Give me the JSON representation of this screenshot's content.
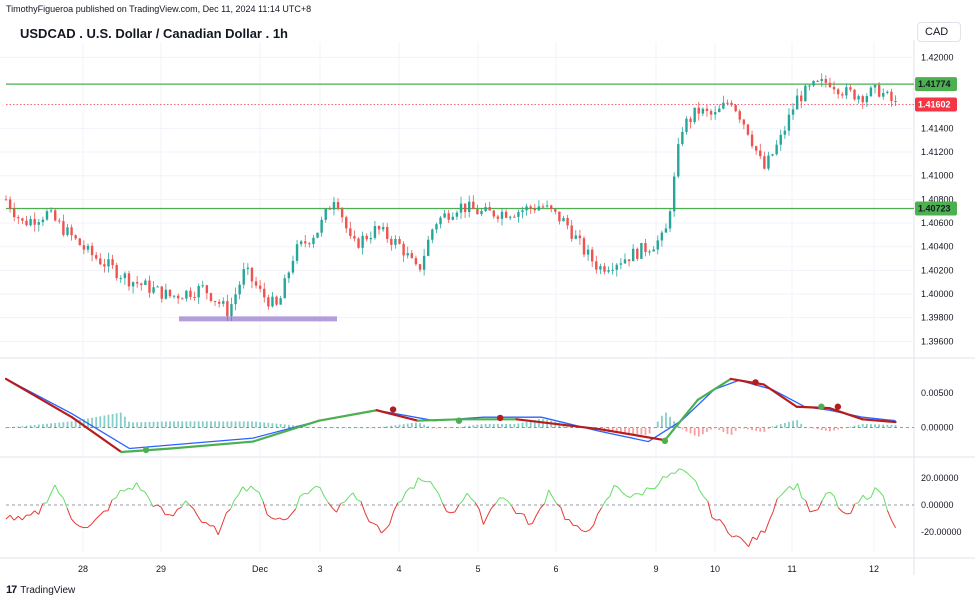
{
  "header": {
    "publish_line": "TimothyFigueroa published on TradingView.com, Dec 11, 2024 11:14 UTC+8"
  },
  "chart": {
    "title": "USDCAD . U.S. Dollar / Canadian Dollar . 1h",
    "currency_button": "CAD",
    "price_axis_labels": [
      "1.42000",
      "1.41400",
      "1.41200",
      "1.41000",
      "1.40800",
      "1.40600",
      "1.40400",
      "1.40200",
      "1.40000",
      "1.39800",
      "1.39600"
    ],
    "level_tags": [
      {
        "label": "1.41774",
        "value": 1.41774,
        "bg": "#4caf50",
        "fg": "#131722"
      },
      {
        "label": "1.40723",
        "value": 1.40723,
        "bg": "#4caf50",
        "fg": "#131722"
      },
      {
        "label": "1.41602",
        "value": 1.41602,
        "bg": "#f23645",
        "fg": "#ffffff"
      }
    ],
    "macd_axis_labels": [
      "0.00500",
      "0.00000"
    ],
    "osc_axis_labels": [
      "20.00000",
      "0.00000",
      "-20.00000"
    ],
    "time_labels": [
      "28",
      "29",
      "Dec",
      "3",
      "4",
      "5",
      "6",
      "9",
      "10",
      "11",
      "12"
    ],
    "colors": {
      "up": "#26a69a",
      "down": "#ef5350",
      "support_line": "#4caf50",
      "current_line": "#f23645",
      "zone": "#b39ddb",
      "macd_line": "#2962ff",
      "signal_up": "#4caf50",
      "signal_down": "#b71c1c",
      "hist_up": "#26a69a",
      "hist_down": "#ef5350",
      "osc_up": "#66dd66",
      "osc_down": "#e53935"
    }
  },
  "chart_data": {
    "type": "candlestick",
    "title": "USDCAD . U.S. Dollar / Canadian Dollar . 1h",
    "ylim": [
      1.3951,
      1.4213
    ],
    "support_levels": [
      1.41774,
      1.40723
    ],
    "current_price": 1.41602,
    "demand_zone": {
      "from_label": "29",
      "to_label": "3",
      "price": 1.3979
    },
    "close_path": [
      {
        "x": 0,
        "y": 1.408
      },
      {
        "x": 2,
        "y": 1.406
      },
      {
        "x": 5,
        "y": 1.4068
      },
      {
        "x": 10,
        "y": 1.4035
      },
      {
        "x": 15,
        "y": 1.4012
      },
      {
        "x": 20,
        "y": 1.3998
      },
      {
        "x": 24,
        "y": 1.4005
      },
      {
        "x": 27,
        "y": 1.3985
      },
      {
        "x": 29,
        "y": 1.402
      },
      {
        "x": 31,
        "y": 1.4
      },
      {
        "x": 33,
        "y": 1.3988
      },
      {
        "x": 35,
        "y": 1.4035
      },
      {
        "x": 38,
        "y": 1.4055
      },
      {
        "x": 40,
        "y": 1.4085
      },
      {
        "x": 42,
        "y": 1.404
      },
      {
        "x": 45,
        "y": 1.4055
      },
      {
        "x": 48,
        "y": 1.404
      },
      {
        "x": 50,
        "y": 1.4018
      },
      {
        "x": 52,
        "y": 1.406
      },
      {
        "x": 55,
        "y": 1.4075
      },
      {
        "x": 58,
        "y": 1.4068
      },
      {
        "x": 62,
        "y": 1.407
      },
      {
        "x": 65,
        "y": 1.4075
      },
      {
        "x": 68,
        "y": 1.406
      },
      {
        "x": 70,
        "y": 1.4038
      },
      {
        "x": 72,
        "y": 1.4022
      },
      {
        "x": 75,
        "y": 1.403
      },
      {
        "x": 78,
        "y": 1.404
      },
      {
        "x": 80,
        "y": 1.4048
      },
      {
        "x": 81,
        "y": 1.409
      },
      {
        "x": 82,
        "y": 1.414
      },
      {
        "x": 84,
        "y": 1.4155
      },
      {
        "x": 86,
        "y": 1.415
      },
      {
        "x": 88,
        "y": 1.4165
      },
      {
        "x": 90,
        "y": 1.414
      },
      {
        "x": 92,
        "y": 1.4105
      },
      {
        "x": 94,
        "y": 1.413
      },
      {
        "x": 96,
        "y": 1.4165
      },
      {
        "x": 98,
        "y": 1.4175
      },
      {
        "x": 100,
        "y": 1.418
      },
      {
        "x": 102,
        "y": 1.417
      },
      {
        "x": 104,
        "y": 1.4168
      },
      {
        "x": 106,
        "y": 1.4172
      },
      {
        "x": 108,
        "y": 1.416
      }
    ],
    "macd": {
      "ylim": [
        -0.0035,
        0.009
      ],
      "macd_line": [
        {
          "x": 0,
          "y": 0.007
        },
        {
          "x": 8,
          "y": 0.002
        },
        {
          "x": 15,
          "y": -0.003
        },
        {
          "x": 20,
          "y": -0.0025
        },
        {
          "x": 30,
          "y": -0.0015
        },
        {
          "x": 38,
          "y": 0.001
        },
        {
          "x": 45,
          "y": 0.0025
        },
        {
          "x": 52,
          "y": 0.001
        },
        {
          "x": 58,
          "y": 0.0015
        },
        {
          "x": 65,
          "y": 0.0015
        },
        {
          "x": 72,
          "y": -0.0005
        },
        {
          "x": 78,
          "y": -0.002
        },
        {
          "x": 82,
          "y": 0.001
        },
        {
          "x": 86,
          "y": 0.0055
        },
        {
          "x": 89,
          "y": 0.0068
        },
        {
          "x": 93,
          "y": 0.0055
        },
        {
          "x": 97,
          "y": 0.003
        },
        {
          "x": 100,
          "y": 0.0025
        },
        {
          "x": 104,
          "y": 0.0015
        },
        {
          "x": 108,
          "y": 0.001
        }
      ],
      "signal_line": [
        {
          "x": 0,
          "y": 0.007
        },
        {
          "x": 8,
          "y": 0.0015
        },
        {
          "x": 14,
          "y": -0.0035
        },
        {
          "x": 20,
          "y": -0.003
        },
        {
          "x": 30,
          "y": -0.002
        },
        {
          "x": 38,
          "y": 0.001
        },
        {
          "x": 45,
          "y": 0.0025
        },
        {
          "x": 50,
          "y": 0.001
        },
        {
          "x": 55,
          "y": 0.0012
        },
        {
          "x": 62,
          "y": 0.0012
        },
        {
          "x": 72,
          "y": -0.0002
        },
        {
          "x": 80,
          "y": -0.0018
        },
        {
          "x": 84,
          "y": 0.004
        },
        {
          "x": 88,
          "y": 0.007
        },
        {
          "x": 92,
          "y": 0.0062
        },
        {
          "x": 96,
          "y": 0.003
        },
        {
          "x": 100,
          "y": 0.0028
        },
        {
          "x": 104,
          "y": 0.0012
        },
        {
          "x": 108,
          "y": 0.0008
        }
      ],
      "cross_dots": [
        {
          "x": 17,
          "y": -0.0032,
          "color": "green"
        },
        {
          "x": 47,
          "y": 0.0026,
          "color": "red"
        },
        {
          "x": 55,
          "y": 0.001,
          "color": "green"
        },
        {
          "x": 60,
          "y": 0.0014,
          "color": "red"
        },
        {
          "x": 80,
          "y": -0.0019,
          "color": "green"
        },
        {
          "x": 91,
          "y": 0.0065,
          "color": "red"
        },
        {
          "x": 99,
          "y": 0.003,
          "color": "green"
        },
        {
          "x": 101,
          "y": 0.003,
          "color": "red"
        }
      ]
    },
    "oscillator": {
      "ylim": [
        -35,
        32
      ],
      "series": [
        {
          "x": 0,
          "y": -8
        },
        {
          "x": 2,
          "y": -12
        },
        {
          "x": 4,
          "y": -5
        },
        {
          "x": 6,
          "y": 15
        },
        {
          "x": 8,
          "y": -10
        },
        {
          "x": 10,
          "y": -18
        },
        {
          "x": 12,
          "y": -5
        },
        {
          "x": 14,
          "y": 10
        },
        {
          "x": 16,
          "y": 15
        },
        {
          "x": 18,
          "y": 0
        },
        {
          "x": 20,
          "y": -10
        },
        {
          "x": 22,
          "y": 5
        },
        {
          "x": 24,
          "y": -15
        },
        {
          "x": 26,
          "y": -20
        },
        {
          "x": 28,
          "y": 10
        },
        {
          "x": 30,
          "y": 15
        },
        {
          "x": 32,
          "y": -8
        },
        {
          "x": 34,
          "y": -12
        },
        {
          "x": 36,
          "y": 8
        },
        {
          "x": 38,
          "y": 14
        },
        {
          "x": 40,
          "y": -5
        },
        {
          "x": 42,
          "y": 12
        },
        {
          "x": 44,
          "y": -10
        },
        {
          "x": 46,
          "y": -22
        },
        {
          "x": 48,
          "y": 5
        },
        {
          "x": 50,
          "y": 18
        },
        {
          "x": 52,
          "y": 14
        },
        {
          "x": 54,
          "y": -8
        },
        {
          "x": 56,
          "y": 10
        },
        {
          "x": 58,
          "y": -12
        },
        {
          "x": 60,
          "y": 8
        },
        {
          "x": 62,
          "y": -5
        },
        {
          "x": 64,
          "y": -15
        },
        {
          "x": 66,
          "y": 12
        },
        {
          "x": 68,
          "y": -10
        },
        {
          "x": 70,
          "y": -22
        },
        {
          "x": 72,
          "y": -8
        },
        {
          "x": 74,
          "y": 15
        },
        {
          "x": 76,
          "y": 5
        },
        {
          "x": 78,
          "y": 12
        },
        {
          "x": 80,
          "y": 20
        },
        {
          "x": 82,
          "y": 25
        },
        {
          "x": 84,
          "y": 15
        },
        {
          "x": 86,
          "y": -10
        },
        {
          "x": 88,
          "y": -20
        },
        {
          "x": 90,
          "y": -30
        },
        {
          "x": 92,
          "y": -20
        },
        {
          "x": 94,
          "y": 10
        },
        {
          "x": 96,
          "y": 15
        },
        {
          "x": 98,
          "y": -8
        },
        {
          "x": 100,
          "y": 10
        },
        {
          "x": 102,
          "y": -10
        },
        {
          "x": 104,
          "y": 5
        },
        {
          "x": 106,
          "y": 12
        },
        {
          "x": 108,
          "y": -15
        }
      ]
    }
  },
  "footer": {
    "brand": "TradingView"
  }
}
